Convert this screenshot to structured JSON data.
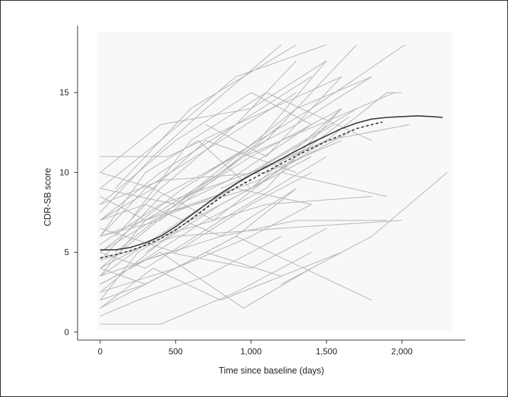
{
  "chart_data": {
    "type": "line",
    "title": "",
    "xlabel": "Time since baseline (days)",
    "ylabel": "CDR-SB score",
    "xlim": [
      -150,
      2420
    ],
    "ylim": [
      -0.5,
      19.2
    ],
    "xticks": [
      0,
      500,
      1000,
      1500,
      2000
    ],
    "xtick_labels": [
      "0",
      "500",
      "1,000",
      "1,500",
      "2,000"
    ],
    "yticks": [
      0,
      5,
      10,
      15
    ],
    "ytick_labels": [
      "0",
      "5",
      "10",
      "15"
    ],
    "grid": false,
    "legend": "none",
    "colors": {
      "individual": "#b4b4b4",
      "fitted_solid": "#333333",
      "fitted_dashed": "#333333",
      "panel": "#f8f8f8"
    },
    "series": [
      {
        "x": [
          0,
          400,
          900,
          1400
        ],
        "y": [
          0.5,
          0.5,
          2.5,
          5
        ]
      },
      {
        "x": [
          0,
          250,
          700,
          1200
        ],
        "y": [
          1,
          2,
          3.5,
          6
        ]
      },
      {
        "x": [
          0,
          350,
          800,
          1600
        ],
        "y": [
          1.5,
          4,
          2,
          5
        ]
      },
      {
        "x": [
          0,
          300,
          900,
          1800
        ],
        "y": [
          2,
          3,
          6,
          2
        ]
      },
      {
        "x": [
          0,
          500,
          1000,
          1400
        ],
        "y": [
          2.5,
          4,
          6,
          8
        ]
      },
      {
        "x": [
          0,
          400,
          950,
          1400
        ],
        "y": [
          3,
          5,
          1.5,
          4
        ]
      },
      {
        "x": [
          0,
          300,
          800,
          1300,
          1900
        ],
        "y": [
          3,
          4.5,
          6,
          7,
          7
        ]
      },
      {
        "x": [
          0,
          450,
          1000,
          1500
        ],
        "y": [
          3.5,
          5,
          4,
          6.5
        ]
      },
      {
        "x": [
          0,
          400,
          1100,
          1800
        ],
        "y": [
          4,
          6,
          8,
          8.5
        ]
      },
      {
        "x": [
          0,
          300,
          700,
          1200
        ],
        "y": [
          4,
          3,
          5,
          3.5
        ]
      },
      {
        "x": [
          0,
          500,
          1200,
          2000
        ],
        "y": [
          4.5,
          6,
          6.5,
          7
        ]
      },
      {
        "x": [
          0,
          350,
          900,
          1400
        ],
        "y": [
          5,
          7,
          9,
          8
        ]
      },
      {
        "x": [
          0,
          300,
          800,
          1500
        ],
        "y": [
          5,
          4,
          7,
          11
        ]
      },
      {
        "x": [
          0,
          400,
          1000,
          1500,
          2050
        ],
        "y": [
          5.5,
          8,
          10,
          12,
          13
        ]
      },
      {
        "x": [
          0,
          450,
          1000,
          1600
        ],
        "y": [
          6,
          7.5,
          9,
          14
        ]
      },
      {
        "x": [
          0,
          300,
          800,
          1300
        ],
        "y": [
          6,
          9,
          12,
          15
        ]
      },
      {
        "x": [
          0,
          500,
          1000,
          1400
        ],
        "y": [
          6.5,
          5,
          8,
          10
        ]
      },
      {
        "x": [
          0,
          400,
          900,
          1600
        ],
        "y": [
          7,
          10,
          13,
          16
        ]
      },
      {
        "x": [
          0,
          300,
          800,
          1300
        ],
        "y": [
          7,
          8,
          6,
          9
        ]
      },
      {
        "x": [
          0,
          350,
          700,
          1200
        ],
        "y": [
          7.5,
          11,
          14,
          18
        ]
      },
      {
        "x": [
          0,
          400,
          1100,
          1600
        ],
        "y": [
          8,
          9.5,
          10,
          12
        ]
      },
      {
        "x": [
          0,
          500,
          1000,
          1400
        ],
        "y": [
          8,
          12,
          15,
          13
        ]
      },
      {
        "x": [
          0,
          300,
          800,
          1200
        ],
        "y": [
          8.5,
          7,
          10,
          13
        ]
      },
      {
        "x": [
          0,
          400,
          900,
          1500
        ],
        "y": [
          9,
          12,
          16,
          18
        ]
      },
      {
        "x": [
          0,
          500,
          1000,
          1600
        ],
        "y": [
          9,
          8,
          11,
          14
        ]
      },
      {
        "x": [
          0,
          350,
          700,
          1300
        ],
        "y": [
          10,
          9,
          12,
          10
        ]
      },
      {
        "x": [
          0,
          400,
          1000,
          1500
        ],
        "y": [
          10,
          13,
          14,
          17
        ]
      },
      {
        "x": [
          0,
          450,
          900,
          1400
        ],
        "y": [
          11,
          11,
          13,
          16
        ]
      },
      {
        "x": [
          0,
          300,
          850,
          1400
        ],
        "y": [
          3.5,
          7,
          9.5,
          13
        ]
      },
      {
        "x": [
          0,
          450,
          1000,
          1700
        ],
        "y": [
          2.5,
          6,
          10,
          14
        ]
      },
      {
        "x": [
          0,
          300,
          650,
          1000,
          1500
        ],
        "y": [
          6,
          10,
          12,
          9,
          12
        ]
      },
      {
        "x": [
          0,
          400,
          900,
          1300,
          1800
        ],
        "y": [
          4.5,
          8.5,
          11,
          14,
          16
        ]
      },
      {
        "x": [
          0,
          300,
          700,
          1100,
          1550
        ],
        "y": [
          3.5,
          5.5,
          8,
          10.5,
          13
        ]
      },
      {
        "x": [
          0,
          550,
          1050,
          1500
        ],
        "y": [
          5,
          9,
          12,
          17
        ]
      },
      {
        "x": [
          0,
          250,
          600,
          1000,
          1400
        ],
        "y": [
          2,
          5,
          7,
          9,
          11
        ]
      },
      {
        "x": [
          0,
          350,
          750,
          1300,
          1650
        ],
        "y": [
          7,
          9,
          7,
          11,
          13.5
        ]
      },
      {
        "x": [
          0,
          500,
          900,
          1300
        ],
        "y": [
          1.5,
          4,
          6,
          9
        ]
      },
      {
        "x": [
          0,
          400,
          950,
          1450,
          1950
        ],
        "y": [
          6,
          7,
          11,
          13,
          15
        ]
      },
      {
        "x": [
          100,
          500,
          900,
          1300,
          1800
        ],
        "y": [
          5,
          8,
          11,
          13,
          16
        ]
      },
      {
        "x": [
          200,
          700,
          1100,
          1600
        ],
        "y": [
          4,
          7,
          9,
          14
        ]
      },
      {
        "x": [
          500,
          1100,
          1700
        ],
        "y": [
          8,
          12,
          18
        ]
      },
      {
        "x": [
          700,
          1400,
          2020
        ],
        "y": [
          10,
          14,
          18
        ]
      },
      {
        "x": [
          100,
          600,
          1300
        ],
        "y": [
          9,
          14,
          18
        ]
      },
      {
        "x": [
          1200,
          1800,
          2300
        ],
        "y": [
          3,
          6,
          10
        ]
      },
      {
        "x": [
          800,
          1500,
          1900,
          2000
        ],
        "y": [
          9,
          12,
          15,
          15
        ]
      },
      {
        "x": [
          700,
          1100,
          1600
        ],
        "y": [
          13,
          11,
          16
        ]
      },
      {
        "x": [
          200,
          600,
          1100,
          1800
        ],
        "y": [
          7,
          12,
          15,
          12
        ]
      },
      {
        "x": [
          100,
          400,
          900,
          1300
        ],
        "y": [
          6,
          9,
          13,
          17
        ]
      },
      {
        "x": [
          300,
          800,
          1200,
          1900
        ],
        "y": [
          5,
          8,
          10,
          8.5
        ]
      },
      {
        "x": [
          0,
          450,
          1050,
          1650
        ],
        "y": [
          4,
          7.5,
          9.5,
          12.5
        ]
      }
    ],
    "fitted_solid": {
      "x": [
        0,
        100,
        200,
        300,
        400,
        500,
        600,
        700,
        800,
        900,
        1000,
        1100,
        1200,
        1300,
        1400,
        1500,
        1600,
        1700,
        1800,
        1900,
        2000,
        2100,
        2200,
        2270
      ],
      "y": [
        5.15,
        5.15,
        5.3,
        5.6,
        6.0,
        6.6,
        7.3,
        8.0,
        8.7,
        9.3,
        9.85,
        10.35,
        10.85,
        11.35,
        11.85,
        12.3,
        12.75,
        13.1,
        13.35,
        13.45,
        13.5,
        13.55,
        13.5,
        13.45
      ]
    },
    "fitted_dashed": {
      "x": [
        0,
        100,
        200,
        300,
        400,
        500,
        600,
        700,
        800,
        900,
        1000,
        1100,
        1200,
        1300,
        1400,
        1500,
        1600,
        1700,
        1800,
        1870
      ],
      "y": [
        4.65,
        4.85,
        5.1,
        5.45,
        5.85,
        6.4,
        7.05,
        7.75,
        8.45,
        9.05,
        9.55,
        10.05,
        10.55,
        11.05,
        11.5,
        11.95,
        12.35,
        12.75,
        13.0,
        13.15
      ]
    }
  }
}
